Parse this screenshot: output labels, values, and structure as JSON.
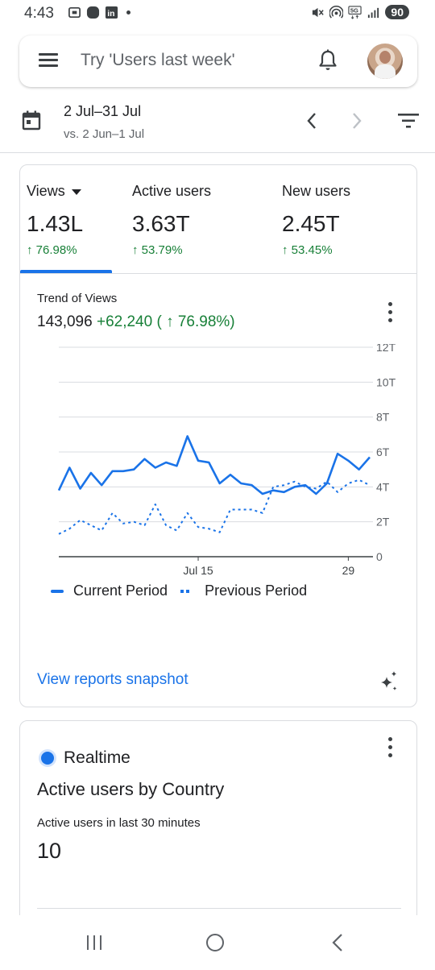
{
  "status_bar": {
    "time": "4:43",
    "left_icons": [
      "screenshot-icon",
      "record-icon",
      "linkedin-icon",
      "dot-icon"
    ],
    "right_icons": [
      "mute-icon",
      "hotspot-icon",
      "5g-icon",
      "signal-icon"
    ],
    "battery": "90"
  },
  "search": {
    "placeholder": "Try 'Users last week'"
  },
  "date": {
    "range": "2 Jul–31 Jul",
    "compare": "vs. 2 Jun–1 Jul"
  },
  "metrics": [
    {
      "label": "Views",
      "value": "1.43L",
      "change": "↑ 76.98%"
    },
    {
      "label": "Active users",
      "value": "3.63T",
      "change": "↑ 53.79%"
    },
    {
      "label": "New users",
      "value": "2.45T",
      "change": "↑ 53.45%"
    }
  ],
  "trend": {
    "title": "Trend of Views",
    "total": "143,096",
    "delta": "+62,240 ( ↑ 76.98%)"
  },
  "chart_data": {
    "type": "line",
    "x_tick_labels": [
      "Jul 15",
      "29"
    ],
    "y_tick_labels": [
      "12T",
      "10T",
      "8T",
      "6T",
      "4T",
      "2T",
      "0"
    ],
    "ylim": [
      0,
      12000
    ],
    "grid": true,
    "legend_placement": "bottom-left",
    "x": [
      1,
      2,
      3,
      4,
      5,
      6,
      7,
      8,
      9,
      10,
      11,
      12,
      13,
      14,
      15,
      16,
      17,
      18,
      19,
      20,
      21,
      22,
      23,
      24,
      25,
      26,
      27,
      28,
      29,
      30
    ],
    "series": [
      {
        "name": "Current Period",
        "style": "solid",
        "color": "#1a73e8",
        "values": [
          3800,
          5100,
          3900,
          4800,
          4100,
          4900,
          4900,
          5000,
          5600,
          5100,
          5400,
          5200,
          6900,
          5500,
          5400,
          4200,
          4700,
          4200,
          4100,
          3600,
          3800,
          3700,
          4000,
          4100,
          3600,
          4200,
          5900,
          5500,
          5000,
          5700
        ]
      },
      {
        "name": "Previous Period",
        "style": "dashed",
        "color": "#1a73e8",
        "values": [
          1300,
          1600,
          2100,
          1800,
          1500,
          2500,
          1900,
          2000,
          1800,
          3000,
          1800,
          1500,
          2500,
          1700,
          1600,
          1400,
          2700,
          2700,
          2700,
          2500,
          4000,
          4100,
          4300,
          4000,
          3900,
          4300,
          3700,
          4200,
          4400,
          4100
        ]
      }
    ]
  },
  "legend": {
    "current": "Current Period",
    "previous": "Previous Period"
  },
  "links": {
    "view_reports": "View reports snapshot"
  },
  "realtime": {
    "label": "Realtime",
    "title": "Active users by Country",
    "subtitle": "Active users in last 30 minutes",
    "value": "10"
  },
  "colors": {
    "accent": "#1a73e8",
    "positive": "#188038",
    "text": "#202124",
    "muted": "#5f6368"
  }
}
